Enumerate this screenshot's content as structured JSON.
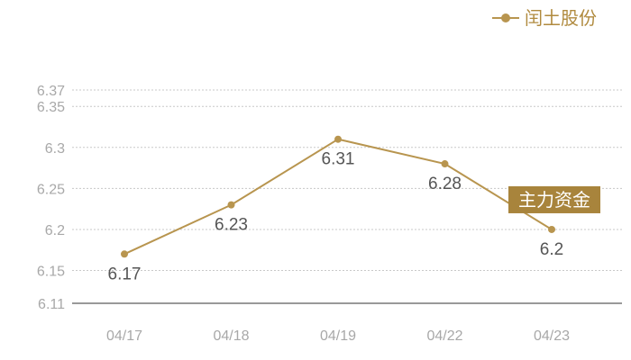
{
  "colors": {
    "series": "#b8954f",
    "tag_bg": "#a8843c",
    "grid": "#c8c8c8",
    "axis": "#333333"
  },
  "legend": {
    "marker": "dot-line-icon"
  },
  "annotation": {
    "text": "主力资金",
    "category": "04/23"
  },
  "chart_data": {
    "type": "line",
    "categories": [
      "04/17",
      "04/18",
      "04/19",
      "04/22",
      "04/23"
    ],
    "series": [
      {
        "name": "闰土股份",
        "values": [
          6.17,
          6.23,
          6.31,
          6.28,
          6.2
        ]
      }
    ],
    "data_labels": [
      "6.17",
      "6.23",
      "6.31",
      "6.28",
      "6.2"
    ],
    "y_ticks": [
      "6.37",
      "6.35",
      "6.3",
      "6.25",
      "6.2",
      "6.15",
      "6.11"
    ],
    "ylim": [
      6.11,
      6.37
    ],
    "grid": true,
    "legend_position": "top-right",
    "title": "",
    "xlabel": "",
    "ylabel": ""
  }
}
